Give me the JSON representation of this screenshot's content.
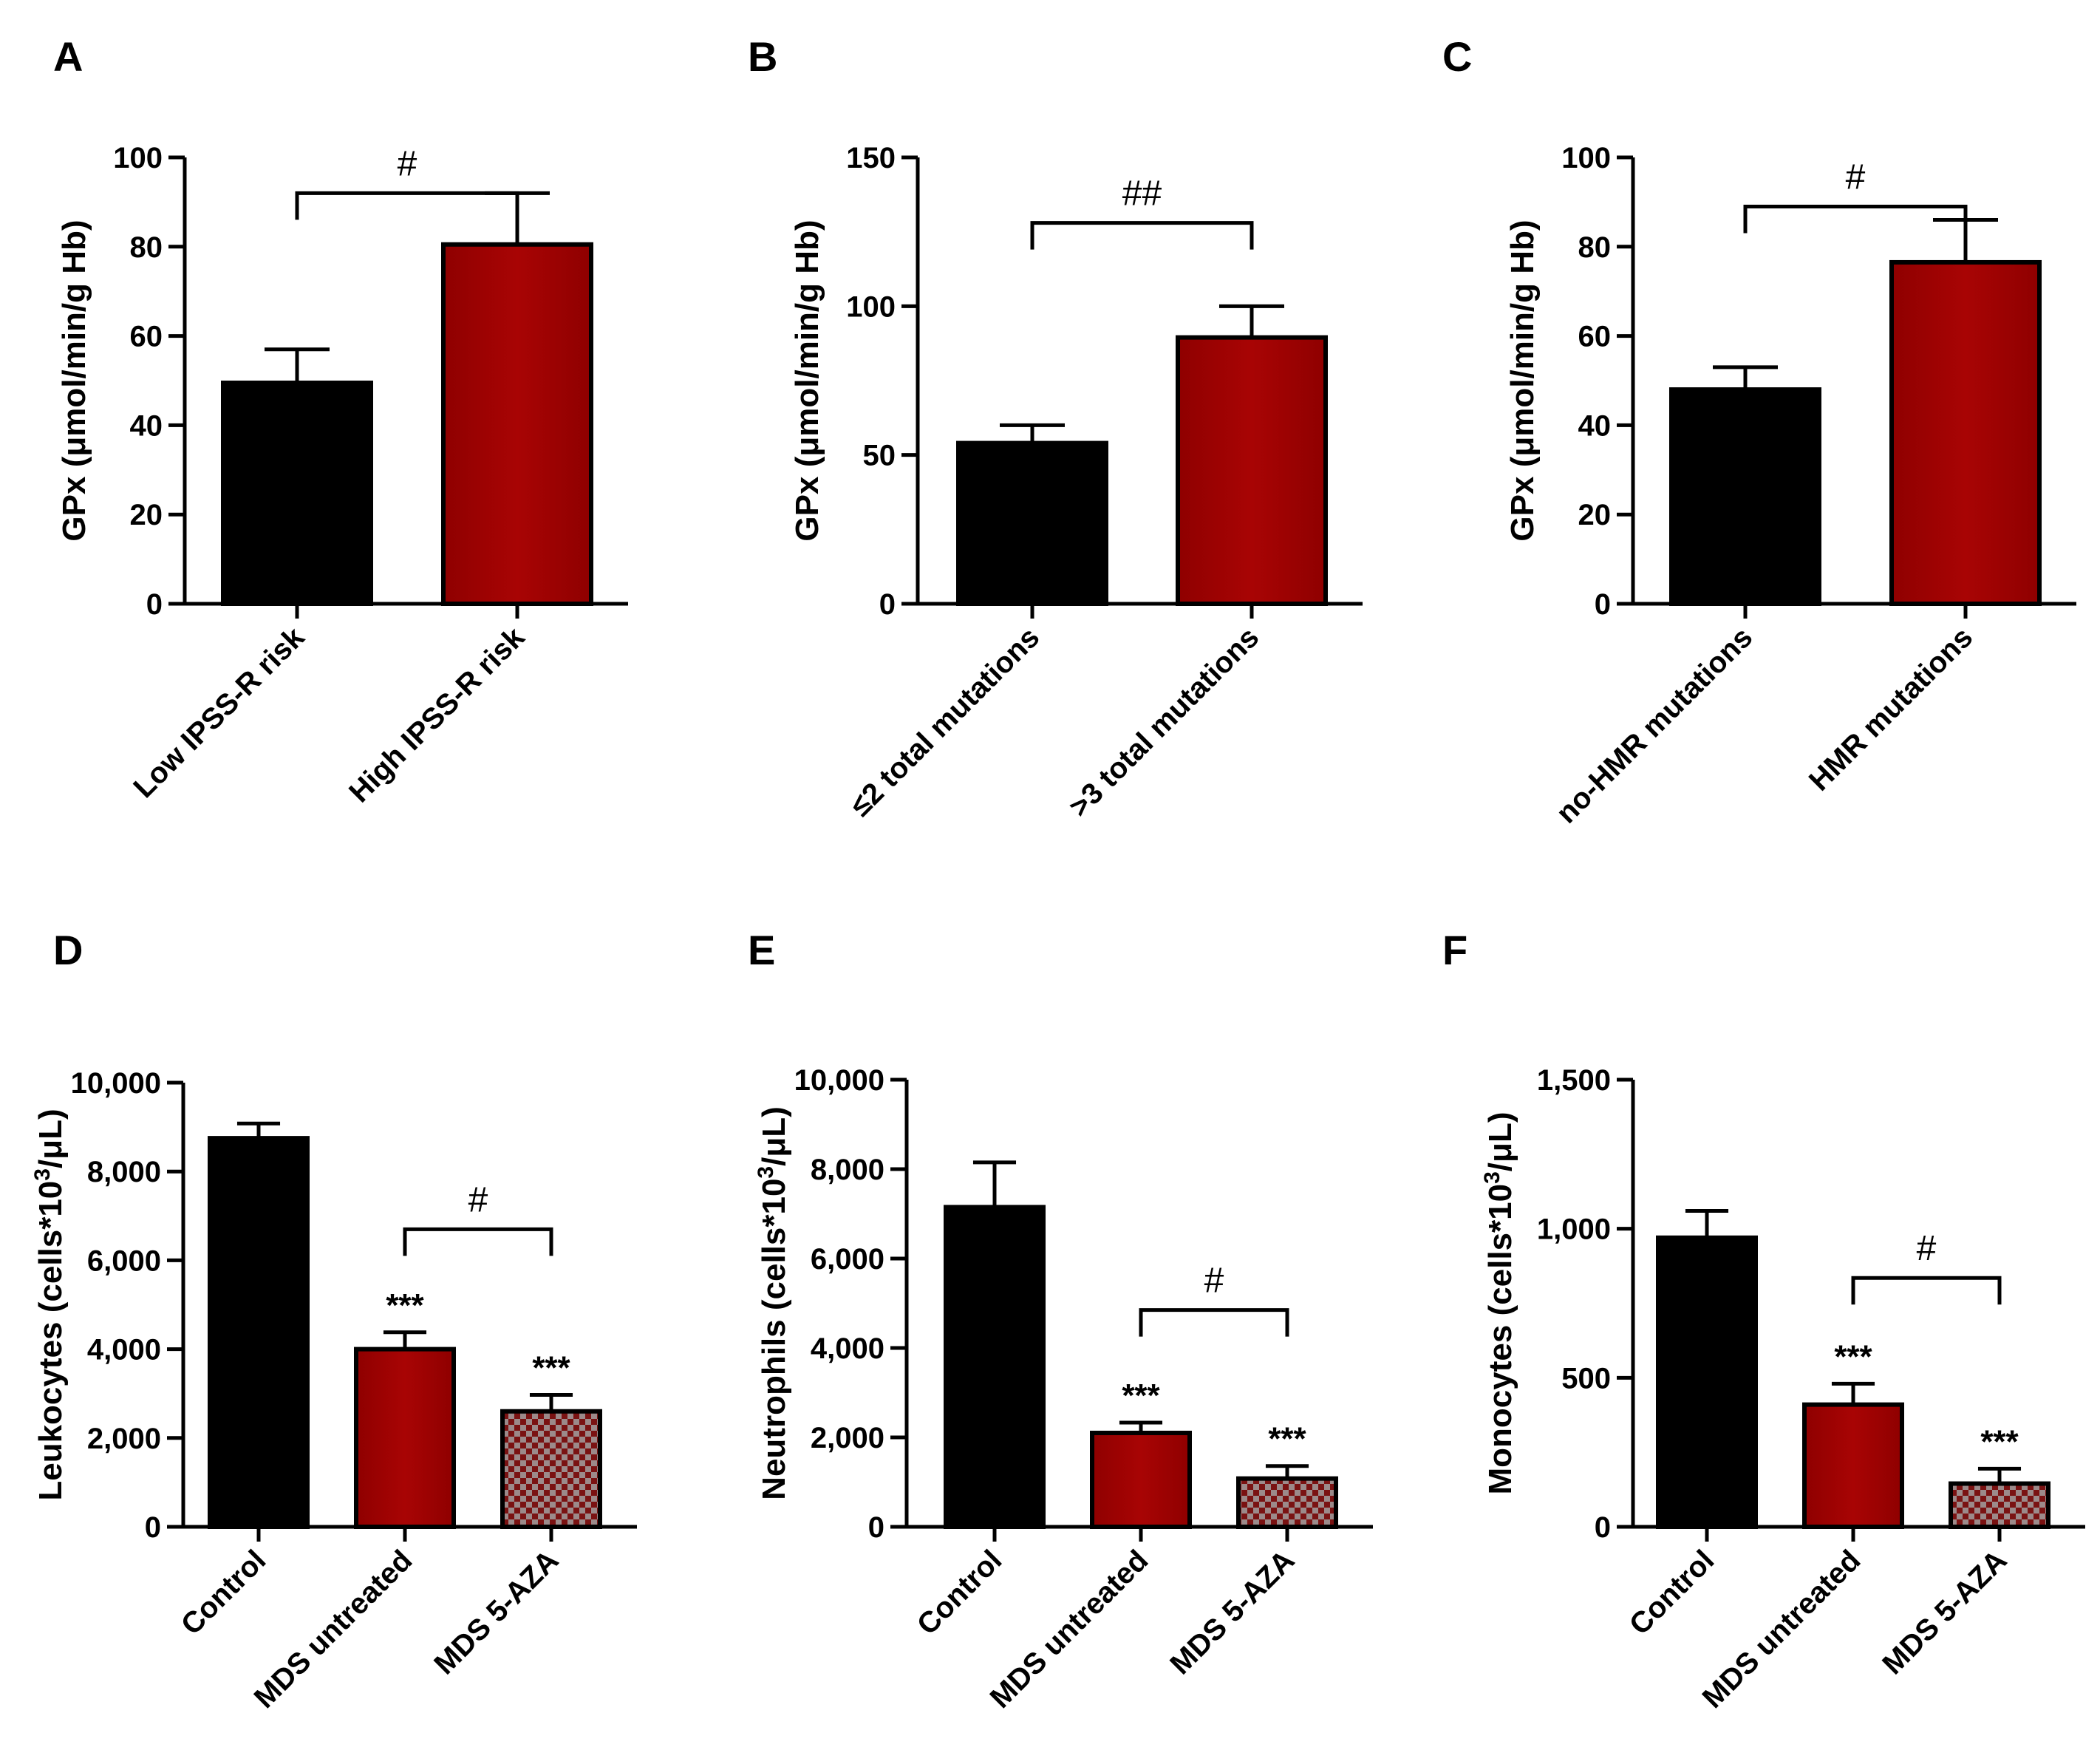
{
  "colors": {
    "black_bar": "#000000",
    "red_bar": "#9b0000",
    "checker_light": "#9c8a8a",
    "checker_dark": "#7a1212",
    "axis": "#000000"
  },
  "chart_data": [
    {
      "panel": "A",
      "type": "bar",
      "title": "",
      "ylabel": "GPx (μmol/min/g Hb)",
      "xlabel": "",
      "ylim": [
        0,
        100
      ],
      "yticks": [
        0,
        20,
        40,
        60,
        80,
        100
      ],
      "ytick_labels": [
        "0",
        "20",
        "40",
        "60",
        "80",
        "100"
      ],
      "categories": [
        "Low IPSS-R risk",
        "High IPSS-R risk"
      ],
      "values": [
        49.5,
        80.5
      ],
      "errors": [
        7.5,
        11.5
      ],
      "fills": [
        "black",
        "red"
      ],
      "brackets": [
        {
          "from": 0,
          "to": 1,
          "label": "#",
          "level": 92
        }
      ],
      "stars": [
        "",
        ""
      ]
    },
    {
      "panel": "B",
      "type": "bar",
      "title": "",
      "ylabel": "GPx (μmol/min/g Hb)",
      "xlabel": "",
      "ylim": [
        0,
        150
      ],
      "yticks": [
        0,
        50,
        100,
        150
      ],
      "ytick_labels": [
        "0",
        "50",
        "100",
        "150"
      ],
      "categories": [
        "≤2 total mutations",
        ">3 total mutations"
      ],
      "values": [
        54,
        89.5
      ],
      "errors": [
        6,
        10.5
      ],
      "fills": [
        "black",
        "red"
      ],
      "brackets": [
        {
          "from": 0,
          "to": 1,
          "label": "##",
          "level": 128
        }
      ],
      "stars": [
        "",
        ""
      ]
    },
    {
      "panel": "C",
      "type": "bar",
      "title": "",
      "ylabel": "GPx (μmol/min/g Hb)",
      "xlabel": "",
      "ylim": [
        0,
        100
      ],
      "yticks": [
        0,
        20,
        40,
        60,
        80,
        100
      ],
      "ytick_labels": [
        "0",
        "20",
        "40",
        "60",
        "80",
        "100"
      ],
      "categories": [
        "no-HMR mutations",
        "HMR mutations"
      ],
      "values": [
        48,
        76.5
      ],
      "errors": [
        5,
        9.5
      ],
      "fills": [
        "black",
        "red"
      ],
      "brackets": [
        {
          "from": 0,
          "to": 1,
          "label": "#",
          "level": 89
        }
      ],
      "stars": [
        "",
        ""
      ]
    },
    {
      "panel": "D",
      "type": "bar",
      "title": "",
      "ylabel": "Leukocytes (cells*10",
      "ylabel_sup": "3",
      "ylabel_tail": "/μL)",
      "xlabel": "",
      "ylim": [
        0,
        10000
      ],
      "yticks": [
        0,
        2000,
        4000,
        6000,
        8000,
        10000
      ],
      "ytick_labels": [
        "0",
        "2,000",
        "4,000",
        "6,000",
        "8,000",
        "10,000"
      ],
      "categories": [
        "Control",
        "MDS untreated",
        "MDS 5-AZA"
      ],
      "values": [
        8750,
        4000,
        2600
      ],
      "errors": [
        330,
        380,
        370
      ],
      "fills": [
        "black",
        "red",
        "checker"
      ],
      "brackets": [
        {
          "from": 1,
          "to": 2,
          "label": "#",
          "level": 6700
        }
      ],
      "stars": [
        "",
        "***",
        "***"
      ]
    },
    {
      "panel": "E",
      "type": "bar",
      "title": "",
      "ylabel": "Neutrophils (cells*10",
      "ylabel_sup": "3",
      "ylabel_tail": "/μL)",
      "xlabel": "",
      "ylim": [
        0,
        10000
      ],
      "yticks": [
        0,
        2000,
        4000,
        6000,
        8000,
        10000
      ],
      "ytick_labels": [
        "0",
        "2,000",
        "4,000",
        "6,000",
        "8,000",
        "10,000"
      ],
      "categories": [
        "Control",
        "MDS untreated",
        "MDS 5-AZA"
      ],
      "values": [
        7150,
        2100,
        1080
      ],
      "errors": [
        1000,
        230,
        280
      ],
      "fills": [
        "black",
        "red",
        "checker"
      ],
      "brackets": [
        {
          "from": 1,
          "to": 2,
          "label": "#",
          "level": 4850
        }
      ],
      "stars": [
        "",
        "***",
        "***"
      ]
    },
    {
      "panel": "F",
      "type": "bar",
      "title": "",
      "ylabel": "Monocytes (cells*10",
      "ylabel_sup": "3",
      "ylabel_tail": "/μL)",
      "xlabel": "",
      "ylim": [
        0,
        1500
      ],
      "yticks": [
        0,
        500,
        1000,
        1500
      ],
      "ytick_labels": [
        "0",
        "500",
        "1,000",
        "1,500"
      ],
      "categories": [
        "Control",
        "MDS untreated",
        "MDS 5-AZA"
      ],
      "values": [
        970,
        410,
        145
      ],
      "errors": [
        90,
        70,
        50
      ],
      "fills": [
        "black",
        "red",
        "checker"
      ],
      "brackets": [
        {
          "from": 1,
          "to": 2,
          "label": "#",
          "level": 835
        }
      ],
      "stars": [
        "",
        "***",
        "***"
      ]
    }
  ]
}
